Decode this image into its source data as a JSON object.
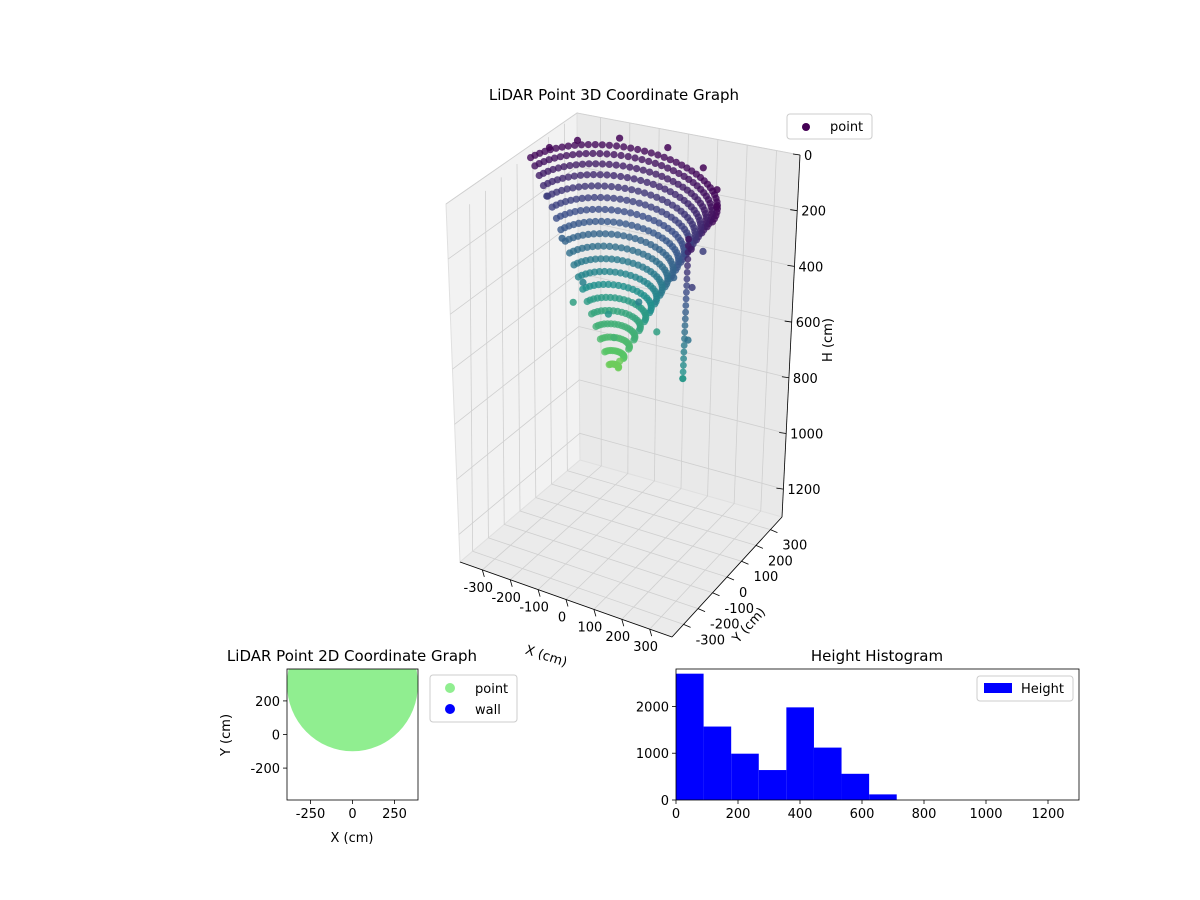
{
  "chart_data": [
    {
      "type": "scatter",
      "projection": "3d",
      "title": "LiDAR Point 3D Coordinate Graph",
      "xlabel": "X (cm)",
      "ylabel": "Y (cm)",
      "zlabel": "H (cm)",
      "xlim": [
        -380,
        380
      ],
      "ylim": [
        -380,
        380
      ],
      "zlim": [
        1300,
        0
      ],
      "z_inverted": true,
      "xticks": [
        -300,
        -200,
        -100,
        0,
        100,
        200,
        300
      ],
      "yticks": [
        -300,
        -200,
        -100,
        0,
        100,
        200,
        300
      ],
      "zticks": [
        0,
        200,
        400,
        600,
        800,
        1000,
        1200
      ],
      "colormap": "viridis",
      "legend": {
        "entries": [
          "point"
        ],
        "placement": "top-right"
      },
      "grid": true,
      "series": [
        {
          "name": "point",
          "description_of_shape": "bowl of scan rings opening upward, apex near (0,0,620)",
          "sample_points": [
            [
              -300,
              120,
              10
            ],
            [
              -250,
              210,
              10
            ],
            [
              -150,
              300,
              10
            ],
            [
              0,
              340,
              10
            ],
            [
              150,
              300,
              10
            ],
            [
              250,
              210,
              10
            ],
            [
              300,
              120,
              10
            ],
            [
              -280,
              60,
              150
            ],
            [
              -200,
              10,
              250
            ],
            [
              -100,
              -40,
              350
            ],
            [
              0,
              -60,
              420
            ],
            [
              100,
              -40,
              350
            ],
            [
              200,
              10,
              250
            ],
            [
              280,
              60,
              150
            ],
            [
              -150,
              -20,
              450
            ],
            [
              0,
              -30,
              520
            ],
            [
              150,
              -20,
              450
            ],
            [
              0,
              0,
              620
            ],
            [
              320,
              -80,
              60
            ],
            [
              360,
              -150,
              150
            ],
            [
              380,
              -220,
              300
            ],
            [
              380,
              -260,
              420
            ]
          ]
        }
      ]
    },
    {
      "type": "scatter",
      "title": "LiDAR Point 2D Coordinate Graph",
      "xlabel": "X (cm)",
      "ylabel": "Y (cm)",
      "xlim": [
        -390,
        390
      ],
      "ylim": [
        -390,
        390
      ],
      "xticks": [
        -250,
        0,
        250
      ],
      "yticks": [
        -200,
        0,
        200
      ],
      "legend": {
        "entries": [
          "point",
          "wall"
        ],
        "placement": "outside-right"
      },
      "series": [
        {
          "name": "point",
          "color": "#90ee90",
          "region": "filled half-disc, y from about -100 to 390, radius ~390 centred at (0, 300)"
        },
        {
          "name": "wall",
          "color": "#0000ff",
          "points": []
        }
      ]
    },
    {
      "type": "bar",
      "subtype": "histogram",
      "title": "Height Histogram",
      "xlim": [
        0,
        1300
      ],
      "ylim": [
        0,
        2800
      ],
      "xticks": [
        0,
        200,
        400,
        600,
        800,
        1000,
        1200
      ],
      "yticks": [
        0,
        1000,
        2000
      ],
      "legend": {
        "entries": [
          "Height"
        ],
        "placement": "top-right"
      },
      "bar_color": "#0000ff",
      "bin_edges": [
        0,
        89,
        178,
        267,
        356,
        445,
        534,
        623,
        712,
        801,
        890,
        979,
        1068,
        1157,
        1246
      ],
      "series": [
        {
          "name": "Height",
          "values": [
            2700,
            1570,
            990,
            640,
            1980,
            1120,
            560,
            120,
            0,
            0,
            0,
            0,
            0,
            0
          ]
        }
      ]
    }
  ]
}
